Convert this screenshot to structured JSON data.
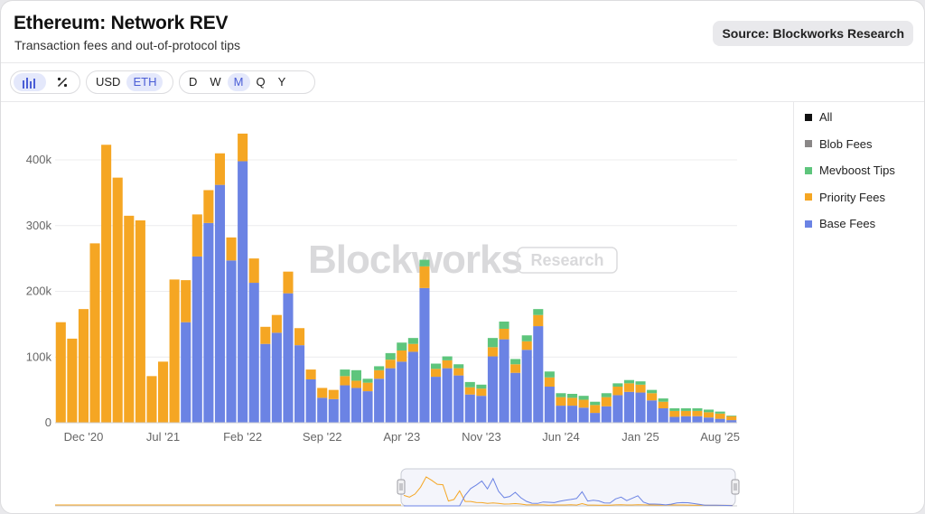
{
  "header": {
    "title": "Ethereum: Network REV",
    "subtitle": "Transaction fees and out-of-protocol tips",
    "source_label": "Source: Blockworks Research"
  },
  "toolbar": {
    "chart_type_icons": [
      "bar-chart-icon",
      "percent-icon"
    ],
    "currency_options": [
      "USD",
      "ETH"
    ],
    "currency_selected": "ETH",
    "period_options": [
      "D",
      "W",
      "M",
      "Q",
      "Y"
    ],
    "period_selected": "M"
  },
  "watermark": {
    "brand": "Blockworks",
    "tag": "Research"
  },
  "legend": {
    "items": [
      {
        "name": "All",
        "color": "#111111"
      },
      {
        "name": "Blob Fees",
        "color": "#8a8787"
      },
      {
        "name": "Mevboost Tips",
        "color": "#5ec57c"
      },
      {
        "name": "Priority Fees",
        "color": "#f5a623"
      },
      {
        "name": "Base Fees",
        "color": "#6b83e4"
      }
    ]
  },
  "chart_data": {
    "type": "bar",
    "stacked": true,
    "x_tick_labels": [
      "Dec '20",
      "Jul '21",
      "Feb '22",
      "Sep '22",
      "Apr '23",
      "Nov '23",
      "Jun '24",
      "Jan '25",
      "Aug '25"
    ],
    "y_tick_labels": [
      "0",
      "100k",
      "200k",
      "300k",
      "400k"
    ],
    "ylim": [
      0,
      450000
    ],
    "grid": true,
    "legend_position": "right",
    "colors": {
      "base": "#6b83e4",
      "priority": "#f5a623",
      "mevboost": "#5ec57c",
      "blob": "#8a8787"
    },
    "series": [
      {
        "name": "Base Fees",
        "values": [
          0,
          0,
          0,
          0,
          0,
          0,
          0,
          0,
          0,
          0,
          0,
          153000,
          253000,
          304000,
          362000,
          247000,
          398000,
          213000,
          120000,
          137000,
          197000,
          118000,
          66000,
          38000,
          36000,
          57000,
          53000,
          48000,
          67000,
          83000,
          93000,
          108000,
          205000,
          70000,
          83000,
          72000,
          43000,
          41000,
          101000,
          127000,
          76000,
          111000,
          147000,
          55000,
          26000,
          26000,
          23000,
          15000,
          25000,
          42000,
          47000,
          46000,
          34000,
          22000,
          9000,
          10000,
          10000,
          8000,
          6000,
          4000
        ]
      },
      {
        "name": "Priority Fees",
        "values": [
          153000,
          128000,
          173000,
          273000,
          423000,
          373000,
          315000,
          308000,
          71000,
          93000,
          218000,
          64000,
          64000,
          50000,
          48000,
          35000,
          42000,
          37000,
          26000,
          27000,
          33000,
          26000,
          15000,
          15000,
          14000,
          14000,
          11000,
          13000,
          13000,
          13000,
          17000,
          12000,
          33000,
          12000,
          12000,
          11000,
          11000,
          11000,
          14000,
          16000,
          13000,
          13000,
          17000,
          14000,
          13000,
          12000,
          12000,
          12000,
          14000,
          13000,
          13000,
          12000,
          11000,
          10000,
          9000,
          8000,
          8000,
          8000,
          8000,
          6000
        ]
      },
      {
        "name": "Mevboost Tips",
        "values": [
          0,
          0,
          0,
          0,
          0,
          0,
          0,
          0,
          0,
          0,
          0,
          0,
          0,
          0,
          0,
          0,
          0,
          0,
          0,
          0,
          0,
          0,
          0,
          0,
          0,
          10000,
          16000,
          6000,
          6000,
          10000,
          12000,
          9000,
          10000,
          8000,
          6000,
          6000,
          8000,
          6000,
          14000,
          11000,
          8000,
          9000,
          9000,
          9000,
          6000,
          6000,
          6000,
          5000,
          6000,
          5000,
          5000,
          5000,
          5000,
          5000,
          4000,
          4000,
          4000,
          4000,
          3000,
          1000
        ]
      },
      {
        "name": "Blob Fees",
        "values": [
          0,
          0,
          0,
          0,
          0,
          0,
          0,
          0,
          0,
          0,
          0,
          0,
          0,
          0,
          0,
          0,
          0,
          0,
          0,
          0,
          0,
          0,
          0,
          0,
          0,
          0,
          0,
          0,
          0,
          0,
          0,
          0,
          0,
          0,
          0,
          0,
          0,
          0,
          0,
          0,
          0,
          0,
          0,
          0,
          0,
          0,
          0,
          0,
          0,
          0,
          0,
          0,
          0,
          0,
          0,
          0,
          0,
          0,
          0,
          0
        ]
      }
    ]
  }
}
